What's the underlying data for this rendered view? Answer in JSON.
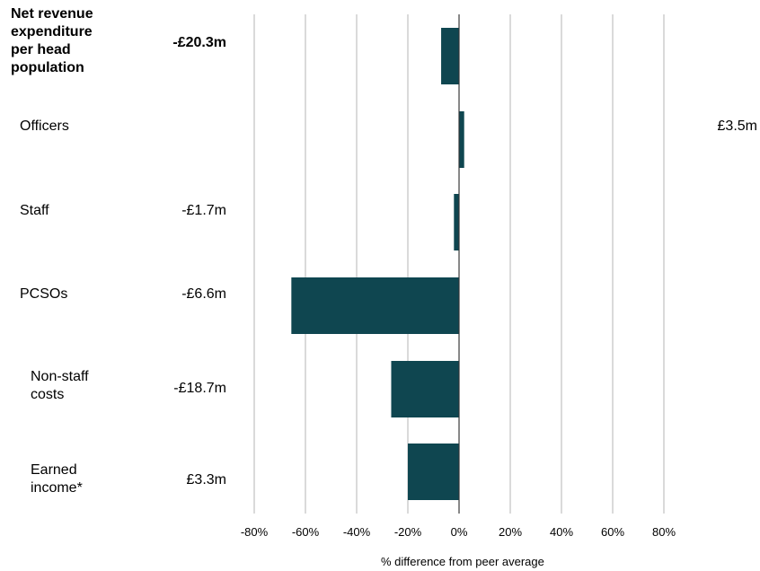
{
  "chart_data": {
    "type": "bar",
    "orientation": "horizontal",
    "categories": [
      "Net revenue\nexpenditure\nper head\npopulation",
      "Officers",
      "Staff",
      "PCSOs",
      "Non-staff\ncosts",
      "Earned\nincome*"
    ],
    "values": [
      -7,
      2,
      -2,
      -65.5,
      -26.5,
      -20
    ],
    "value_labels": [
      "-£20.3m",
      "£3.5m",
      "-£1.7m",
      "-£6.6m",
      "-£18.7m",
      "£3.3m"
    ],
    "xlabel": "% difference from peer average",
    "xlim": [
      -80,
      80
    ],
    "xticks": [
      -80,
      -60,
      -40,
      -20,
      0,
      20,
      40,
      60,
      80
    ],
    "xtick_labels": [
      "-80%",
      "-60%",
      "-40%",
      "-20%",
      "0%",
      "20%",
      "40%",
      "60%",
      "80%"
    ],
    "grid": true,
    "bar_color": "#0f4650"
  }
}
